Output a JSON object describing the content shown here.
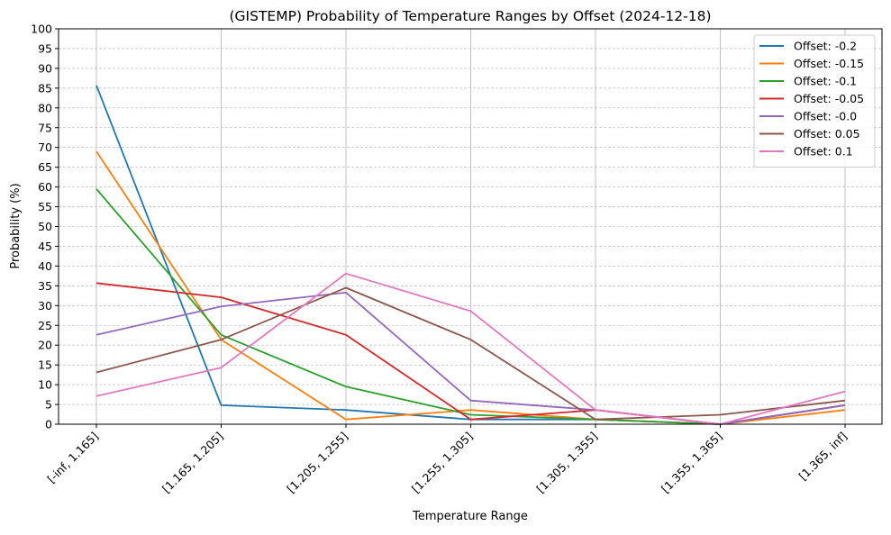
{
  "chart_data": {
    "type": "line",
    "title": "(GISTEMP) Probability of Temperature Ranges by Offset (2024-12-18)",
    "xlabel": "Temperature Range",
    "ylabel": "Probability (%)",
    "ylim": [
      0,
      100
    ],
    "yticks": [
      0,
      5,
      10,
      15,
      20,
      25,
      30,
      35,
      40,
      45,
      50,
      55,
      60,
      65,
      70,
      75,
      80,
      85,
      90,
      95,
      100
    ],
    "grid": true,
    "legend_position": "top-right",
    "categories": [
      "[-inf, 1.165]",
      "[1.165, 1.205]",
      "[1.205, 1.255]",
      "[1.255, 1.305]",
      "[1.305, 1.355]",
      "[1.355, 1.365]",
      "[1.365, inf]"
    ],
    "series": [
      {
        "name": "Offset: -0.2",
        "color": "#1f77b4",
        "values": [
          85.7,
          4.8,
          3.6,
          1.2,
          1.2,
          0.0,
          4.8
        ]
      },
      {
        "name": "Offset: -0.15",
        "color": "#ff7f0e",
        "values": [
          69.0,
          21.4,
          1.2,
          3.6,
          1.2,
          0.0,
          3.6
        ]
      },
      {
        "name": "Offset: -0.1",
        "color": "#2ca02c",
        "values": [
          59.5,
          22.6,
          9.5,
          2.4,
          1.2,
          0.0,
          4.8
        ]
      },
      {
        "name": "Offset: -0.05",
        "color": "#d62728",
        "values": [
          35.7,
          32.1,
          22.6,
          1.2,
          3.6,
          0.0,
          4.8
        ]
      },
      {
        "name": "Offset: -0.0",
        "color": "#9467bd",
        "values": [
          22.6,
          29.8,
          33.3,
          6.0,
          3.6,
          0.0,
          4.8
        ]
      },
      {
        "name": "Offset: 0.05",
        "color": "#8c564b",
        "values": [
          13.1,
          21.4,
          34.5,
          21.4,
          1.2,
          2.4,
          6.0
        ]
      },
      {
        "name": "Offset: 0.1",
        "color": "#e377c2",
        "values": [
          7.1,
          14.3,
          38.1,
          28.6,
          3.6,
          0.0,
          8.3
        ]
      }
    ]
  }
}
